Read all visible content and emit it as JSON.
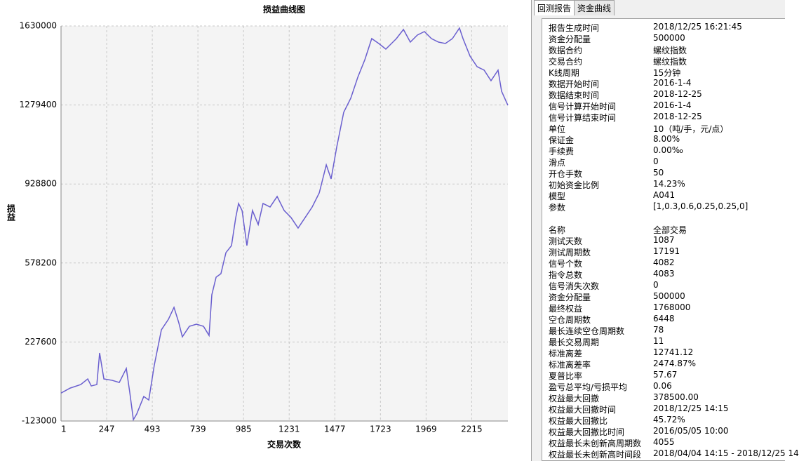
{
  "chart_data": {
    "type": "line",
    "title": "损益曲线图",
    "x_label": "交易次数",
    "y_label": "损益",
    "xlim": [
      1,
      2410
    ],
    "ylim": [
      -123000,
      1630000
    ],
    "xticks": [
      1,
      247,
      493,
      739,
      985,
      1231,
      1477,
      1723,
      1969,
      2215
    ],
    "yticks": [
      -123000,
      227600,
      578200,
      928800,
      1279400,
      1630000
    ],
    "grid": true,
    "x": [
      1,
      50,
      107,
      145,
      164,
      194,
      209,
      232,
      277,
      315,
      353,
      372,
      391,
      409,
      447,
      474,
      504,
      542,
      580,
      610,
      636,
      655,
      693,
      731,
      769,
      799,
      814,
      837,
      863,
      890,
      920,
      943,
      958,
      977,
      1003,
      1033,
      1064,
      1090,
      1128,
      1166,
      1204,
      1241,
      1279,
      1317,
      1355,
      1393,
      1431,
      1457,
      1487,
      1525,
      1563,
      1601,
      1639,
      1676,
      1714,
      1752,
      1771,
      1809,
      1847,
      1884,
      1922,
      1960,
      1998,
      2036,
      2073,
      2111,
      2149,
      2168,
      2206,
      2244,
      2282,
      2319,
      2357,
      2376,
      2410
    ],
    "series": [
      {
        "color": "#6a5fcf",
        "values": [
          1000,
          23000,
          38700,
          63700,
          32500,
          38700,
          178900,
          63700,
          57400,
          48100,
          110400,
          1400,
          -117000,
          -92000,
          -14200,
          -29800,
          125900,
          281600,
          328300,
          381300,
          312800,
          250500,
          297200,
          306500,
          297200,
          256700,
          437300,
          515200,
          530800,
          624200,
          655300,
          779900,
          842200,
          811000,
          655300,
          811000,
          748700,
          842200,
          826600,
          873300,
          811000,
          779900,
          733200,
          779900,
          826600,
          888900,
          1013400,
          951100,
          1091300,
          1247000,
          1309300,
          1402700,
          1480500,
          1574000,
          1552200,
          1527200,
          1542800,
          1574000,
          1614400,
          1558400,
          1589500,
          1605100,
          1574000,
          1558400,
          1552200,
          1574000,
          1620700,
          1574000,
          1496100,
          1449400,
          1433800,
          1387100,
          1433800,
          1340400,
          1278100
        ]
      }
    ]
  },
  "tabs": [
    "回测报告",
    "资金曲线"
  ],
  "report": {
    "groups": [
      {
        "rows": [
          [
            "报告生成时间",
            "2018/12/25 16:21:45"
          ],
          [
            "资金分配量",
            "500000"
          ],
          [
            "数据合约",
            "螺纹指数"
          ],
          [
            "交易合约",
            "螺纹指数"
          ],
          [
            "K线周期",
            "15分钟"
          ],
          [
            "数据开始时间",
            "2016-1-4"
          ],
          [
            "数据结束时间",
            "2018-12-25"
          ],
          [
            "信号计算开始时间",
            "2016-1-4"
          ],
          [
            "信号计算结束时间",
            "2018-12-25"
          ],
          [
            "单位",
            "10（吨/手，元/点）"
          ],
          [
            "保证金",
            "8.00%"
          ],
          [
            "手续费",
            "0.00‰"
          ],
          [
            "滑点",
            "0"
          ],
          [
            "开仓手数",
            "50"
          ],
          [
            "初始资金比例",
            "14.23%"
          ],
          [
            "模型",
            "A041"
          ],
          [
            "参数",
            "[1,0.3,0.6,0.25,0.25,0]"
          ]
        ]
      },
      {
        "rows": [
          [
            "名称",
            "全部交易"
          ],
          [
            "测试天数",
            "1087"
          ],
          [
            "测试周期数",
            "17191"
          ],
          [
            "信号个数",
            "4082"
          ],
          [
            "指令总数",
            "4083"
          ],
          [
            "信号消失次数",
            "0"
          ],
          [
            "资金分配量",
            "500000"
          ],
          [
            "最终权益",
            "1768000"
          ],
          [
            "空仓周期数",
            "6448"
          ],
          [
            "最长连续空仓周期数",
            "78"
          ],
          [
            "最长交易周期",
            "11"
          ],
          [
            "标准离差",
            "12741.12"
          ],
          [
            "标准离差率",
            "2474.87%"
          ],
          [
            "夏普比率",
            "57.67"
          ],
          [
            "盈亏总平均/亏损平均",
            "0.06"
          ],
          [
            "权益最大回撤",
            "378500.00"
          ],
          [
            "权益最大回撤时间",
            "2018/12/25 14:15"
          ],
          [
            "权益最大回撤比",
            "45.72%"
          ],
          [
            "权益最大回撤比时间",
            "2016/05/05 10:00"
          ],
          [
            "权益最长未创新高周期数",
            "4055"
          ],
          [
            "权益最长未创新高时间段",
            "2018/04/04 14:15 - 2018/12/25 14"
          ]
        ]
      }
    ]
  }
}
